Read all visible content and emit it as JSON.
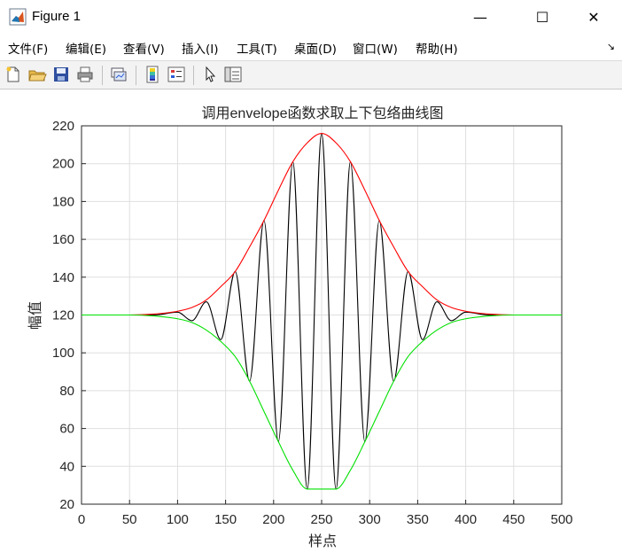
{
  "window": {
    "title": "Figure 1",
    "minimize_glyph": "—",
    "maximize_glyph": "☐",
    "close_glyph": "✕"
  },
  "menu": {
    "items": [
      {
        "label": "文件(F)"
      },
      {
        "label": "编辑(E)"
      },
      {
        "label": "查看(V)"
      },
      {
        "label": "插入(I)"
      },
      {
        "label": "工具(T)"
      },
      {
        "label": "桌面(D)"
      },
      {
        "label": "窗口(W)"
      },
      {
        "label": "帮助(H)"
      }
    ],
    "overflow_glyph": "↘"
  },
  "toolbar": {
    "icons": [
      "new-figure-icon",
      "open-file-icon",
      "save-icon",
      "print-icon",
      "link-plot-icon",
      "colorbar-icon",
      "legend-icon",
      "pointer-icon",
      "property-inspector-icon"
    ]
  },
  "chart_data": {
    "type": "line",
    "title": "调用envelope函数求取上下包络曲线图",
    "xlabel": "样点",
    "ylabel": "幅值",
    "xlim": [
      0,
      500
    ],
    "ylim": [
      20,
      220
    ],
    "xticks": [
      "0",
      "50",
      "100",
      "150",
      "200",
      "250",
      "300",
      "350",
      "400",
      "450",
      "500"
    ],
    "yticks": [
      "20",
      "40",
      "60",
      "80",
      "100",
      "120",
      "140",
      "160",
      "180",
      "200",
      "220"
    ],
    "grid": true,
    "colors": {
      "signal": "#000000",
      "upper": "#ff0000",
      "lower": "#00e000"
    },
    "series": [
      {
        "role": "signal",
        "x": [
          0,
          75,
          100,
          115,
          130,
          145,
          160,
          175,
          190,
          205,
          220,
          235,
          250,
          265,
          280,
          295,
          310,
          325,
          340,
          355,
          370,
          385,
          400,
          425,
          500
        ],
        "y": [
          120,
          120,
          121.5,
          117,
          127,
          107,
          143,
          85,
          170,
          53,
          201,
          28,
          216,
          28,
          201,
          53,
          170,
          85,
          143,
          107,
          127,
          117,
          121.5,
          120,
          120
        ]
      },
      {
        "role": "upper envelope",
        "x": [
          0,
          50,
          75,
          100,
          115,
          130,
          145,
          160,
          175,
          190,
          205,
          220,
          235,
          250,
          265,
          280,
          295,
          310,
          325,
          340,
          355,
          370,
          385,
          400,
          425,
          450,
          500
        ],
        "y": [
          120,
          120,
          120.5,
          122,
          124,
          128,
          135,
          143,
          156,
          170,
          186,
          201,
          211,
          216,
          211,
          201,
          186,
          170,
          156,
          143,
          135,
          128,
          124,
          122,
          120.5,
          120,
          120
        ]
      },
      {
        "role": "lower envelope",
        "x": [
          0,
          50,
          75,
          100,
          115,
          130,
          145,
          160,
          175,
          190,
          205,
          220,
          235,
          250,
          265,
          280,
          295,
          310,
          325,
          340,
          355,
          370,
          385,
          400,
          425,
          450,
          500
        ],
        "y": [
          120,
          120,
          119.5,
          118,
          116,
          112,
          106,
          98,
          85,
          69,
          53,
          38,
          28,
          28,
          28,
          38,
          53,
          69,
          85,
          98,
          106,
          112,
          116,
          118,
          119.5,
          120,
          120
        ]
      }
    ]
  }
}
